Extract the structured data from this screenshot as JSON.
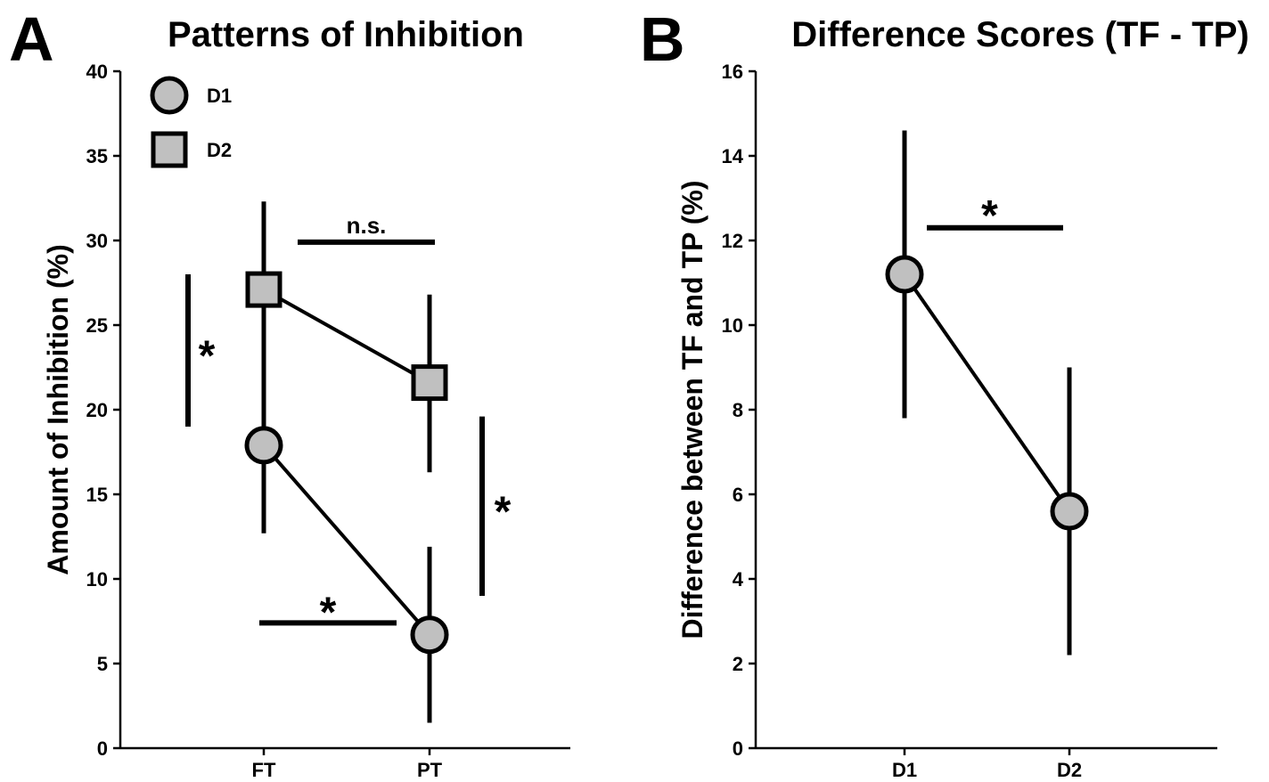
{
  "panels": [
    {
      "letter": "A",
      "chart_data": {
        "type": "line",
        "title": "Patterns of Inhibition",
        "xlabel": "",
        "ylabel": "Amount of Inhibition (%)",
        "categories": [
          "FT",
          "PT"
        ],
        "ylim": [
          0,
          40
        ],
        "yticks": [
          0,
          5,
          10,
          15,
          20,
          25,
          30,
          35,
          40
        ],
        "grid": false,
        "legend_position": "top-left",
        "series": [
          {
            "name": "D1",
            "marker": "circle",
            "values": [
              17.9,
              6.7
            ],
            "error_low": [
              12.7,
              1.5
            ],
            "error_high": [
              23.1,
              11.9
            ]
          },
          {
            "name": "D2",
            "marker": "square",
            "values": [
              27.1,
              21.6
            ],
            "error_low": [
              21.9,
              16.3
            ],
            "error_high": [
              32.3,
              26.8
            ]
          }
        ],
        "annotations": [
          {
            "text": "n.s.",
            "orientation": "horizontal",
            "span": "FT to PT (D2)",
            "y": 29.9
          },
          {
            "text": "*",
            "orientation": "horizontal",
            "span": "FT to PT (D1)",
            "y": 7.4
          },
          {
            "text": "*",
            "orientation": "vertical",
            "span": "D1 vs D2 at FT",
            "y_range": [
              19,
              28
            ]
          },
          {
            "text": "*",
            "orientation": "vertical",
            "span": "D1 vs D2 at PT",
            "y_range": [
              9,
              19.6
            ]
          }
        ]
      }
    },
    {
      "letter": "B",
      "chart_data": {
        "type": "line",
        "title": "Difference Scores (TF - TP)",
        "xlabel": "",
        "ylabel": "Difference between TF and TP (%)",
        "categories": [
          "D1",
          "D2"
        ],
        "ylim": [
          0,
          16
        ],
        "yticks": [
          0,
          2,
          4,
          6,
          8,
          10,
          12,
          14,
          16
        ],
        "grid": false,
        "series": [
          {
            "marker": "circle",
            "values": [
              11.2,
              5.6
            ],
            "error_low": [
              7.8,
              2.2
            ],
            "error_high": [
              14.6,
              9.0
            ]
          }
        ],
        "annotations": [
          {
            "text": "*",
            "orientation": "horizontal",
            "span": "D1 to D2",
            "y": 12.3
          }
        ]
      }
    }
  ],
  "colors": {
    "marker_fill": "#c0c0c0",
    "stroke": "#000000",
    "background": "#ffffff"
  }
}
